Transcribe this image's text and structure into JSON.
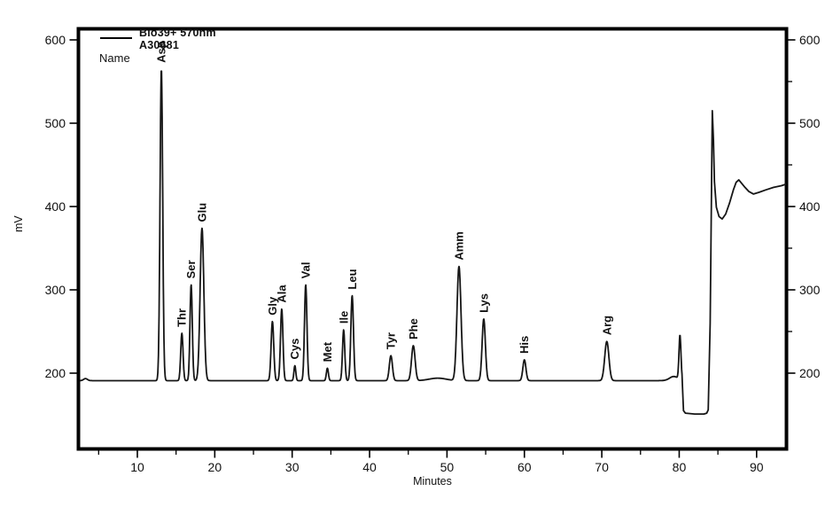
{
  "window": {
    "background": "#ffffff"
  },
  "chart_data": {
    "type": "line",
    "title": "",
    "xlabel": "Minutes",
    "ylabel": "mV",
    "grid": false,
    "legend_position": "top-left-inside",
    "x_axis": {
      "unit": "Minutes",
      "min": 2.6,
      "max": 93.9,
      "major_ticks": [
        10,
        20,
        30,
        40,
        50,
        60,
        70,
        80,
        90
      ],
      "minor_ticks": [
        5,
        15,
        25,
        35,
        45,
        55,
        65,
        75,
        85
      ]
    },
    "y_axis": {
      "unit": "mV",
      "label_min": 200,
      "label_max": 600,
      "major_ticks": [
        200,
        300,
        400,
        500,
        600
      ],
      "right_minor_ticks": [
        250,
        350,
        450,
        550
      ]
    },
    "legend": {
      "series_label_line1": "Bio39+ 570nm",
      "series_label_line2": "A30681",
      "name_heading": "Name"
    },
    "baseline_mv": 191,
    "baseline_features": [
      {
        "minute": 3.3,
        "amp": 2.5,
        "sigma": 0.25
      },
      {
        "minute": 48.8,
        "amp": 3,
        "sigma": 1.1
      },
      {
        "minute": 79.3,
        "amp": 5,
        "sigma": 0.55
      }
    ],
    "peaks": [
      {
        "label": "Asp",
        "minute": 13.1,
        "mv": 565,
        "sigma": 0.17
      },
      {
        "label": "Thr",
        "minute": 15.75,
        "mv": 248,
        "sigma": 0.15
      },
      {
        "label": "Ser",
        "minute": 16.95,
        "mv": 306,
        "sigma": 0.15
      },
      {
        "label": "Glu",
        "minute": 18.35,
        "mv": 374,
        "sigma": 0.24
      },
      {
        "label": "Gly",
        "minute": 27.45,
        "mv": 262,
        "sigma": 0.17
      },
      {
        "label": "Ala",
        "minute": 28.65,
        "mv": 277,
        "sigma": 0.16
      },
      {
        "label": "Cys",
        "minute": 30.35,
        "mv": 209,
        "sigma": 0.12
      },
      {
        "label": "Val",
        "minute": 31.75,
        "mv": 306,
        "sigma": 0.16
      },
      {
        "label": "Met",
        "minute": 34.55,
        "mv": 206,
        "sigma": 0.13
      },
      {
        "label": "Ile",
        "minute": 36.65,
        "mv": 252,
        "sigma": 0.15
      },
      {
        "label": "Leu",
        "minute": 37.75,
        "mv": 293,
        "sigma": 0.17
      },
      {
        "label": "Tyr",
        "minute": 42.75,
        "mv": 221,
        "sigma": 0.2
      },
      {
        "label": "Phe",
        "minute": 45.65,
        "mv": 233,
        "sigma": 0.23
      },
      {
        "label": "Amm",
        "minute": 51.55,
        "mv": 328,
        "sigma": 0.26
      },
      {
        "label": "Lys",
        "minute": 54.75,
        "mv": 265,
        "sigma": 0.21
      },
      {
        "label": "His",
        "minute": 60.0,
        "mv": 216,
        "sigma": 0.2
      },
      {
        "label": "Arg",
        "minute": 70.65,
        "mv": 238,
        "sigma": 0.27
      },
      {
        "label": "",
        "minute": 80.1,
        "mv": 244,
        "sigma": 0.13
      }
    ],
    "end_of_run_tail": [
      [
        80.42,
        185
      ],
      [
        80.55,
        155
      ],
      [
        80.8,
        152
      ],
      [
        82.0,
        151
      ],
      [
        83.2,
        151
      ],
      [
        83.55,
        152
      ],
      [
        83.75,
        156
      ],
      [
        84.0,
        260
      ],
      [
        84.28,
        515
      ],
      [
        84.42,
        480
      ],
      [
        84.55,
        430
      ],
      [
        84.8,
        399
      ],
      [
        85.15,
        388
      ],
      [
        85.55,
        385
      ],
      [
        86.0,
        391
      ],
      [
        86.5,
        404
      ],
      [
        87.0,
        420
      ],
      [
        87.35,
        429
      ],
      [
        87.7,
        432
      ],
      [
        88.05,
        428
      ],
      [
        88.5,
        423
      ],
      [
        89.0,
        418
      ],
      [
        89.6,
        415
      ],
      [
        90.3,
        417
      ],
      [
        91.2,
        420
      ],
      [
        92.2,
        423
      ],
      [
        93.2,
        425
      ],
      [
        93.85,
        427
      ]
    ],
    "colors": {
      "trace": "#161616",
      "frame": "#000000",
      "text": "#111111",
      "background": "#ffffff"
    }
  }
}
